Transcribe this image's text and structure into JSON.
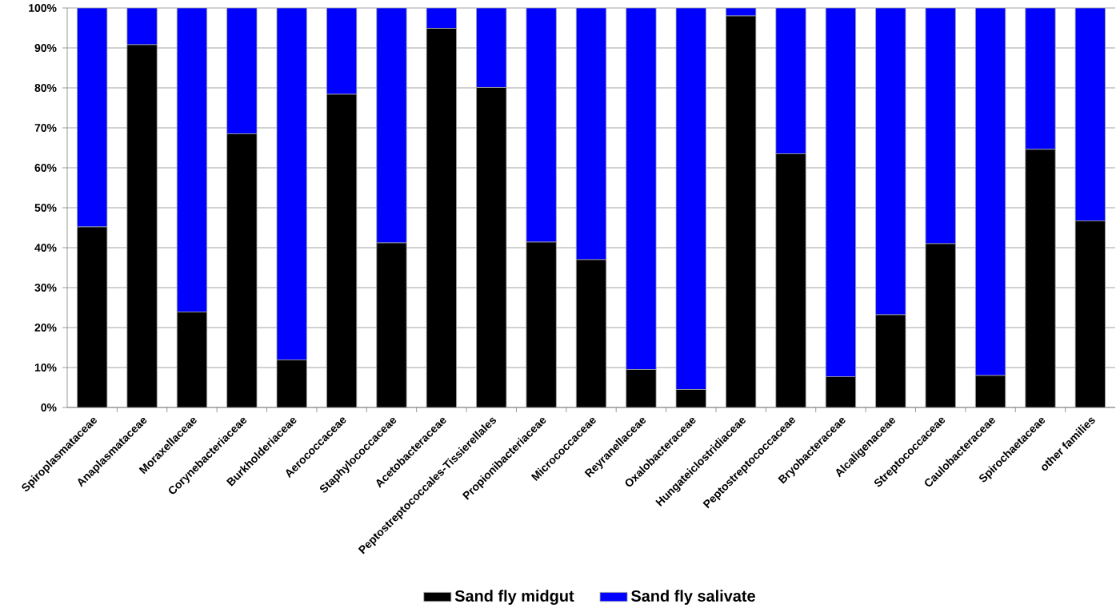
{
  "chart_data": {
    "type": "bar",
    "stacked": true,
    "categories": [
      "Spiroplasmataceae",
      "Anaplasmataceae",
      "Moraxellaceae",
      "Corynebacteriaceae",
      "Burkholderiaceae",
      "Aerococcaceae",
      "Staphylococcaceae",
      "Acetobacteraceae",
      "Peptostreptococcales-Tissierellales",
      "Propionibacteriaceae",
      "Micrococcaceae",
      "Reyranellaceae",
      "Oxalobacteraceae",
      "Hungateiclostridiaceae",
      "Peptostreptococcaceae",
      "Bryobacteraceae",
      "Alcaligenaceae",
      "Streptococcaceae",
      "Caulobacteraceae",
      "Spirochaetaceae",
      "other families"
    ],
    "series": [
      {
        "name": "Sand fly midgut",
        "color": "#000000",
        "values": [
          45.2,
          90.8,
          23.9,
          68.5,
          11.9,
          78.4,
          41.2,
          94.9,
          80.1,
          41.4,
          37.0,
          9.5,
          4.5,
          98.0,
          63.5,
          7.7,
          23.2,
          41.0,
          8.0,
          64.6,
          46.7
        ]
      },
      {
        "name": "Sand fly salivate",
        "color": "#0000ff",
        "values": [
          54.8,
          9.2,
          76.1,
          31.5,
          88.1,
          21.6,
          58.8,
          5.1,
          19.9,
          58.6,
          63.0,
          90.5,
          95.5,
          2.0,
          36.5,
          92.3,
          76.8,
          59.0,
          92.0,
          35.4,
          53.3
        ]
      }
    ],
    "ylim": [
      0,
      100
    ],
    "yticks": [
      {
        "value": 0,
        "label": "0%"
      },
      {
        "value": 10,
        "label": "10%"
      },
      {
        "value": 20,
        "label": "20%"
      },
      {
        "value": 30,
        "label": "30%"
      },
      {
        "value": 40,
        "label": "40%"
      },
      {
        "value": 50,
        "label": "50%"
      },
      {
        "value": 60,
        "label": "60%"
      },
      {
        "value": 70,
        "label": "70%"
      },
      {
        "value": 80,
        "label": "80%"
      },
      {
        "value": 90,
        "label": "90%"
      },
      {
        "value": 100,
        "label": "100%"
      }
    ],
    "grid": "y",
    "legend": "bottom"
  }
}
